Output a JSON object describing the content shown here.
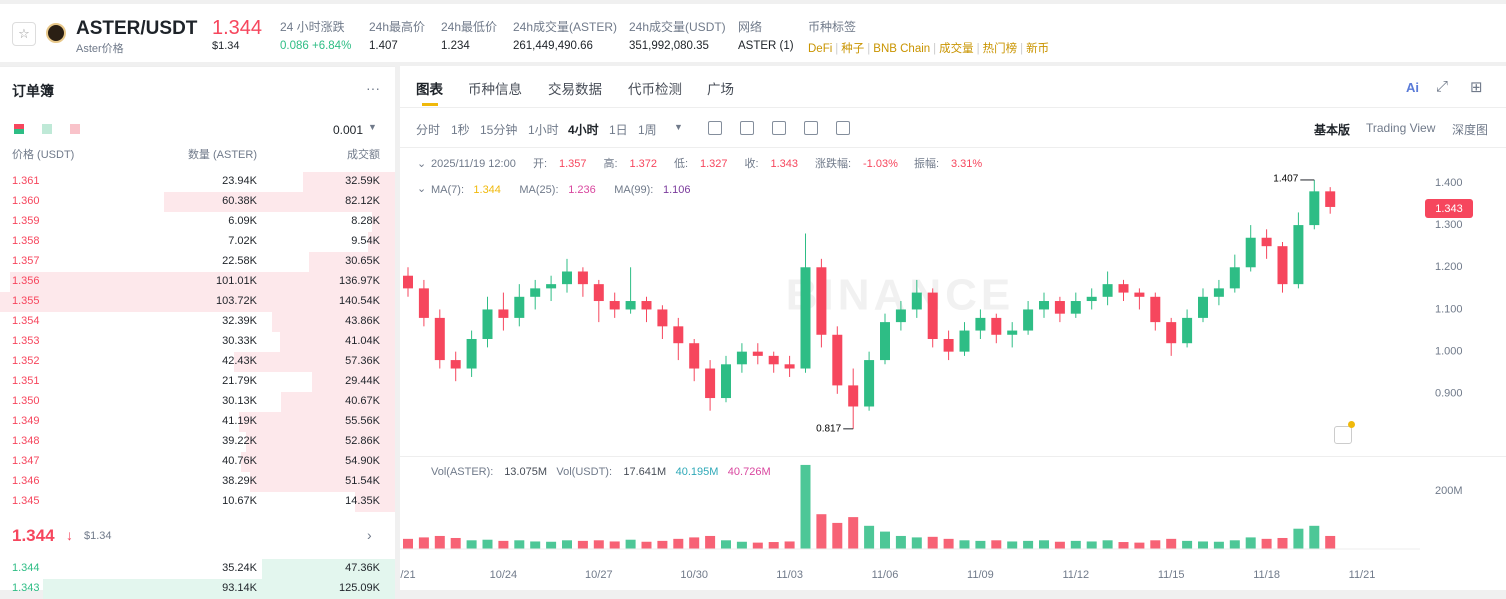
{
  "header": {
    "symbol": "ASTER/USDT",
    "sub": "Aster价格",
    "price": "1.344",
    "price_usd": "$1.34",
    "stats": [
      {
        "label": "24 小时涨跌",
        "value": "0.086 +6.84%"
      },
      {
        "label": "24h最高价",
        "value": "1.407"
      },
      {
        "label": "24h最低价",
        "value": "1.234"
      },
      {
        "label": "24h成交量(ASTER)",
        "value": "261,449,490.66"
      },
      {
        "label": "24h成交量(USDT)",
        "value": "351,992,080.35"
      },
      {
        "label": "网络",
        "value": "ASTER (1)"
      }
    ],
    "tags_label": "币种标签",
    "tags": [
      "DeFi",
      "种子",
      "BNB Chain",
      "成交量",
      "热门榜",
      "新币"
    ]
  },
  "orderbook": {
    "title": "订单簿",
    "step": "0.001",
    "columns": [
      "价格 (USDT)",
      "数量 (ASTER)",
      "成交额"
    ],
    "asks": [
      {
        "price": "1.361",
        "qty": "23.94K",
        "total": 32.59,
        "total_label": "32.59K"
      },
      {
        "price": "1.360",
        "qty": "60.38K",
        "total": 82.12,
        "total_label": "82.12K"
      },
      {
        "price": "1.359",
        "qty": "6.09K",
        "total": 8.28,
        "total_label": "8.28K"
      },
      {
        "price": "1.358",
        "qty": "7.02K",
        "total": 9.54,
        "total_label": "9.54K"
      },
      {
        "price": "1.357",
        "qty": "22.58K",
        "total": 30.65,
        "total_label": "30.65K"
      },
      {
        "price": "1.356",
        "qty": "101.01K",
        "total": 136.97,
        "total_label": "136.97K"
      },
      {
        "price": "1.355",
        "qty": "103.72K",
        "total": 140.54,
        "total_label": "140.54K"
      },
      {
        "price": "1.354",
        "qty": "32.39K",
        "total": 43.86,
        "total_label": "43.86K"
      },
      {
        "price": "1.353",
        "qty": "30.33K",
        "total": 41.04,
        "total_label": "41.04K"
      },
      {
        "price": "1.352",
        "qty": "42.43K",
        "total": 57.36,
        "total_label": "57.36K"
      },
      {
        "price": "1.351",
        "qty": "21.79K",
        "total": 29.44,
        "total_label": "29.44K"
      },
      {
        "price": "1.350",
        "qty": "30.13K",
        "total": 40.67,
        "total_label": "40.67K"
      },
      {
        "price": "1.349",
        "qty": "41.19K",
        "total": 55.56,
        "total_label": "55.56K"
      },
      {
        "price": "1.348",
        "qty": "39.22K",
        "total": 52.86,
        "total_label": "52.86K"
      },
      {
        "price": "1.347",
        "qty": "40.76K",
        "total": 54.9,
        "total_label": "54.90K"
      },
      {
        "price": "1.346",
        "qty": "38.29K",
        "total": 51.54,
        "total_label": "51.54K"
      },
      {
        "price": "1.345",
        "qty": "10.67K",
        "total": 14.35,
        "total_label": "14.35K"
      }
    ],
    "mid_price": "1.344",
    "mid_usd": "$1.34",
    "bids": [
      {
        "price": "1.344",
        "qty": "35.24K",
        "total": 47.36,
        "total_label": "47.36K"
      },
      {
        "price": "1.343",
        "qty": "93.14K",
        "total": 125.09,
        "total_label": "125.09K"
      }
    ]
  },
  "tabs": [
    "图表",
    "币种信息",
    "交易数据",
    "代币检测",
    "广场"
  ],
  "toolbar": {
    "intervals": [
      "分时",
      "1秒",
      "15分钟",
      "1小时",
      "4小时",
      "1日",
      "1周"
    ],
    "modes": [
      "基本版",
      "Trading View",
      "深度图"
    ]
  },
  "chart_data": {
    "type": "candlestick",
    "info": {
      "time": "2025/11/19 12:00",
      "fields": [
        {
          "label": "开:",
          "value": "1.357"
        },
        {
          "label": "高:",
          "value": "1.372"
        },
        {
          "label": "低:",
          "value": "1.327"
        },
        {
          "label": "收:",
          "value": "1.343"
        },
        {
          "label": "涨跌幅:",
          "value": "-1.03%"
        },
        {
          "label": "振幅:",
          "value": "3.31%"
        }
      ]
    },
    "ma": [
      {
        "label": "MA(7):",
        "value": "1.344",
        "color": "#f0b90b"
      },
      {
        "label": "MA(25):",
        "value": "1.236",
        "color": "#d9479f"
      },
      {
        "label": "MA(99):",
        "value": "1.106",
        "color": "#7a3a9c"
      }
    ],
    "watermark": "BINANCE",
    "current_price": "1.343",
    "high_label": "1.407",
    "low_label": "0.817",
    "up_color": "#2ebd85",
    "down_color": "#f6465d",
    "ylim": [
      0.755,
      1.478
    ],
    "yticks": [
      {
        "value": 1.4,
        "label": "1.400"
      },
      {
        "value": 1.3,
        "label": "1.300"
      },
      {
        "value": 1.2,
        "label": "1.200"
      },
      {
        "value": 1.1,
        "label": "1.100"
      },
      {
        "value": 1.0,
        "label": "1.000"
      },
      {
        "value": 0.9,
        "label": "0.900"
      }
    ],
    "xticks": [
      "/21",
      "10/24",
      "10/27",
      "10/30",
      "11/03",
      "11/06",
      "11/09",
      "11/12",
      "11/15",
      "11/18",
      "11/21"
    ],
    "candles": [
      [
        1.18,
        1.2,
        1.13,
        1.15
      ],
      [
        1.15,
        1.17,
        1.06,
        1.08
      ],
      [
        1.08,
        1.1,
        0.96,
        0.98
      ],
      [
        0.98,
        1.0,
        0.93,
        0.96
      ],
      [
        0.96,
        1.05,
        0.94,
        1.03
      ],
      [
        1.03,
        1.13,
        1.01,
        1.1
      ],
      [
        1.1,
        1.14,
        1.05,
        1.08
      ],
      [
        1.08,
        1.16,
        1.06,
        1.13
      ],
      [
        1.13,
        1.17,
        1.1,
        1.15
      ],
      [
        1.15,
        1.18,
        1.12,
        1.16
      ],
      [
        1.16,
        1.22,
        1.14,
        1.19
      ],
      [
        1.19,
        1.2,
        1.13,
        1.16
      ],
      [
        1.16,
        1.17,
        1.07,
        1.12
      ],
      [
        1.12,
        1.14,
        1.08,
        1.1
      ],
      [
        1.1,
        1.2,
        1.09,
        1.12
      ],
      [
        1.12,
        1.13,
        1.07,
        1.1
      ],
      [
        1.1,
        1.11,
        1.03,
        1.06
      ],
      [
        1.06,
        1.08,
        0.98,
        1.02
      ],
      [
        1.02,
        1.03,
        0.93,
        0.96
      ],
      [
        0.96,
        0.98,
        0.86,
        0.89
      ],
      [
        0.89,
        0.99,
        0.88,
        0.97
      ],
      [
        0.97,
        1.02,
        0.95,
        1.0
      ],
      [
        1.0,
        1.02,
        0.97,
        0.99
      ],
      [
        0.99,
        1.0,
        0.95,
        0.97
      ],
      [
        0.97,
        0.99,
        0.94,
        0.96
      ],
      [
        0.96,
        1.28,
        0.95,
        1.2
      ],
      [
        1.2,
        1.22,
        1.01,
        1.04
      ],
      [
        1.04,
        1.06,
        0.9,
        0.92
      ],
      [
        0.92,
        0.96,
        0.817,
        0.87
      ],
      [
        0.87,
        1.0,
        0.86,
        0.98
      ],
      [
        0.98,
        1.09,
        0.97,
        1.07
      ],
      [
        1.07,
        1.12,
        1.05,
        1.1
      ],
      [
        1.1,
        1.17,
        1.08,
        1.14
      ],
      [
        1.14,
        1.15,
        1.01,
        1.03
      ],
      [
        1.03,
        1.05,
        0.98,
        1.0
      ],
      [
        1.0,
        1.07,
        0.99,
        1.05
      ],
      [
        1.05,
        1.1,
        1.03,
        1.08
      ],
      [
        1.08,
        1.09,
        1.02,
        1.04
      ],
      [
        1.04,
        1.07,
        1.01,
        1.05
      ],
      [
        1.05,
        1.12,
        1.04,
        1.1
      ],
      [
        1.1,
        1.14,
        1.08,
        1.12
      ],
      [
        1.12,
        1.13,
        1.07,
        1.09
      ],
      [
        1.09,
        1.14,
        1.08,
        1.12
      ],
      [
        1.12,
        1.15,
        1.1,
        1.13
      ],
      [
        1.13,
        1.19,
        1.11,
        1.16
      ],
      [
        1.16,
        1.17,
        1.12,
        1.14
      ],
      [
        1.14,
        1.15,
        1.1,
        1.13
      ],
      [
        1.13,
        1.14,
        1.05,
        1.07
      ],
      [
        1.07,
        1.08,
        0.99,
        1.02
      ],
      [
        1.02,
        1.1,
        1.01,
        1.08
      ],
      [
        1.08,
        1.15,
        1.07,
        1.13
      ],
      [
        1.13,
        1.17,
        1.11,
        1.15
      ],
      [
        1.15,
        1.23,
        1.14,
        1.2
      ],
      [
        1.2,
        1.3,
        1.19,
        1.27
      ],
      [
        1.27,
        1.29,
        1.22,
        1.25
      ],
      [
        1.25,
        1.26,
        1.14,
        1.16
      ],
      [
        1.16,
        1.33,
        1.15,
        1.3
      ],
      [
        1.3,
        1.407,
        1.29,
        1.38
      ],
      [
        1.38,
        1.39,
        1.327,
        1.343
      ]
    ],
    "volume": {
      "legend": [
        {
          "label": "Vol(ASTER):",
          "value": "13.075M",
          "color": "#474d57"
        },
        {
          "label": "Vol(USDT):",
          "value": "17.641M",
          "color": "#474d57"
        },
        {
          "label": "",
          "value": "40.195M",
          "color": "#2fa9b8"
        },
        {
          "label": "",
          "value": "40.726M",
          "color": "#d9479f"
        }
      ],
      "ylim": [
        0,
        307
      ],
      "yticks": [
        {
          "value": 200,
          "label": "200M"
        }
      ],
      "values": [
        35,
        40,
        45,
        38,
        30,
        32,
        28,
        30,
        26,
        25,
        30,
        28,
        30,
        26,
        32,
        25,
        28,
        35,
        40,
        45,
        30,
        25,
        22,
        24,
        26,
        290,
        120,
        90,
        110,
        80,
        60,
        45,
        40,
        42,
        35,
        30,
        28,
        30,
        26,
        28,
        30,
        25,
        28,
        26,
        30,
        24,
        22,
        30,
        35,
        28,
        26,
        25,
        30,
        40,
        35,
        38,
        70,
        80,
        45
      ]
    }
  }
}
